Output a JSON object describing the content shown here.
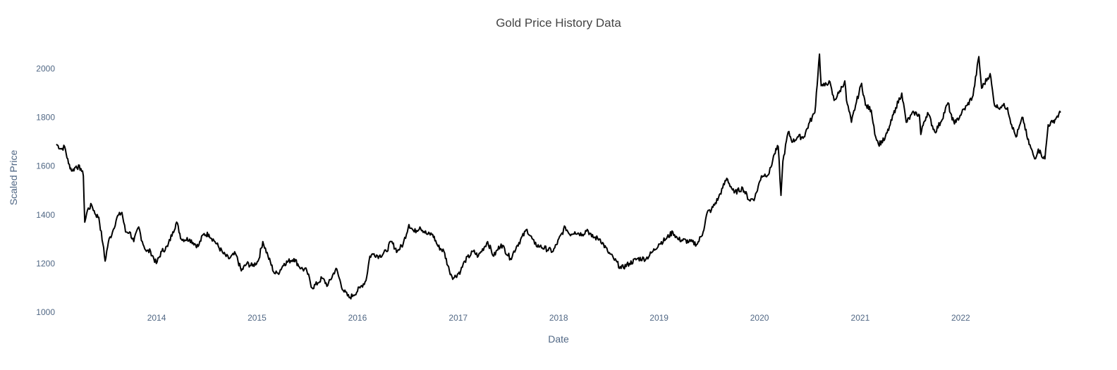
{
  "chart_data": {
    "type": "line",
    "title": "Gold Price History Data",
    "xlabel": "Date",
    "ylabel": "Scaled Price",
    "xlim": [
      "2013-01-02",
      "2022-12-30"
    ],
    "ylim": [
      1000,
      2100
    ],
    "x_ticks": [
      "2014",
      "2015",
      "2016",
      "2017",
      "2018",
      "2019",
      "2020",
      "2021",
      "2022"
    ],
    "y_ticks": [
      1000,
      1200,
      1400,
      1600,
      1800,
      2000
    ],
    "grid": false,
    "legend": "none",
    "colors": {
      "line": "#000000",
      "text": "#506784",
      "title": "#444444",
      "background": "#ffffff"
    },
    "series": [
      {
        "x": [
          "2013-01-02",
          "2013-01-20",
          "2013-02-01",
          "2013-02-15",
          "2013-03-01",
          "2013-03-15",
          "2013-04-01",
          "2013-04-10",
          "2013-04-15",
          "2013-04-25",
          "2013-05-10",
          "2013-05-25",
          "2013-06-05",
          "2013-06-20",
          "2013-06-28",
          "2013-07-10",
          "2013-07-25",
          "2013-08-10",
          "2013-08-28",
          "2013-09-10",
          "2013-09-25",
          "2013-10-10",
          "2013-10-28",
          "2013-11-10",
          "2013-11-25",
          "2013-12-10",
          "2013-12-31",
          "2014-01-20",
          "2014-02-10",
          "2014-03-01",
          "2014-03-15",
          "2014-04-01",
          "2014-05-01",
          "2014-06-01",
          "2014-06-20",
          "2014-07-10",
          "2014-08-01",
          "2014-09-01",
          "2014-09-20",
          "2014-10-15",
          "2014-11-05",
          "2014-11-25",
          "2014-12-15",
          "2015-01-05",
          "2015-01-22",
          "2015-02-10",
          "2015-03-05",
          "2015-03-18",
          "2015-04-10",
          "2015-05-15",
          "2015-06-10",
          "2015-07-01",
          "2015-07-20",
          "2015-08-10",
          "2015-08-25",
          "2015-09-15",
          "2015-10-15",
          "2015-11-10",
          "2015-12-02",
          "2015-12-17",
          "2016-01-10",
          "2016-02-01",
          "2016-02-15",
          "2016-03-01",
          "2016-03-20",
          "2016-04-15",
          "2016-05-02",
          "2016-05-25",
          "2016-06-15",
          "2016-07-06",
          "2016-07-25",
          "2016-08-15",
          "2016-09-10",
          "2016-09-30",
          "2016-10-20",
          "2016-11-10",
          "2016-11-30",
          "2016-12-15",
          "2017-01-10",
          "2017-01-25",
          "2017-02-25",
          "2017-03-15",
          "2017-04-18",
          "2017-05-10",
          "2017-06-06",
          "2017-07-10",
          "2017-08-01",
          "2017-09-08",
          "2017-10-06",
          "2017-10-25",
          "2017-12-12",
          "2018-01-25",
          "2018-02-10",
          "2018-03-01",
          "2018-03-28",
          "2018-04-15",
          "2018-05-01",
          "2018-06-01",
          "2018-06-28",
          "2018-07-20",
          "2018-08-16",
          "2018-09-15",
          "2018-10-15",
          "2018-11-15",
          "2018-12-10",
          "2018-12-31",
          "2019-01-25",
          "2019-02-20",
          "2019-03-10",
          "2019-04-20",
          "2019-05-20",
          "2019-06-10",
          "2019-06-25",
          "2019-07-10",
          "2019-08-05",
          "2019-08-20",
          "2019-09-04",
          "2019-10-01",
          "2019-11-01",
          "2019-11-25",
          "2019-12-15",
          "2020-01-08",
          "2020-02-05",
          "2020-02-24",
          "2020-03-09",
          "2020-03-19",
          "2020-03-26",
          "2020-04-14",
          "2020-05-01",
          "2020-05-18",
          "2020-06-10",
          "2020-07-01",
          "2020-07-20",
          "2020-08-06",
          "2020-08-12",
          "2020-08-25",
          "2020-09-10",
          "2020-09-28",
          "2020-10-15",
          "2020-11-06",
          "2020-11-12",
          "2020-11-30",
          "2020-12-15",
          "2021-01-06",
          "2021-01-20",
          "2021-02-10",
          "2021-02-26",
          "2021-03-08",
          "2021-03-31",
          "2021-04-20",
          "2021-05-10",
          "2021-06-01",
          "2021-06-17",
          "2021-07-15",
          "2021-08-04",
          "2021-08-09",
          "2021-08-20",
          "2021-09-03",
          "2021-09-29",
          "2021-10-20",
          "2021-11-16",
          "2021-12-01",
          "2021-12-15",
          "2022-01-05",
          "2022-01-25",
          "2022-02-15",
          "2022-03-08",
          "2022-03-18",
          "2022-04-18",
          "2022-05-02",
          "2022-05-16",
          "2022-06-01",
          "2022-06-20",
          "2022-07-05",
          "2022-07-21",
          "2022-08-15",
          "2022-09-01",
          "2022-09-27",
          "2022-10-10",
          "2022-10-20",
          "2022-11-03",
          "2022-11-15",
          "2022-12-01",
          "2022-12-15",
          "2022-12-30"
        ],
        "y": [
          1690,
          1670,
          1680,
          1610,
          1580,
          1600,
          1590,
          1560,
          1370,
          1420,
          1440,
          1400,
          1390,
          1280,
          1210,
          1290,
          1330,
          1390,
          1410,
          1330,
          1330,
          1290,
          1350,
          1290,
          1250,
          1250,
          1200,
          1250,
          1270,
          1330,
          1370,
          1300,
          1300,
          1270,
          1320,
          1320,
          1290,
          1240,
          1220,
          1240,
          1170,
          1200,
          1190,
          1210,
          1290,
          1230,
          1160,
          1160,
          1200,
          1220,
          1180,
          1170,
          1100,
          1120,
          1140,
          1110,
          1180,
          1090,
          1060,
          1070,
          1100,
          1130,
          1230,
          1240,
          1230,
          1250,
          1290,
          1250,
          1280,
          1360,
          1330,
          1350,
          1320,
          1320,
          1270,
          1250,
          1170,
          1140,
          1170,
          1210,
          1250,
          1230,
          1290,
          1230,
          1280,
          1220,
          1270,
          1340,
          1280,
          1270,
          1250,
          1350,
          1320,
          1330,
          1320,
          1340,
          1310,
          1300,
          1250,
          1220,
          1180,
          1200,
          1220,
          1220,
          1250,
          1280,
          1300,
          1330,
          1300,
          1290,
          1280,
          1330,
          1410,
          1420,
          1470,
          1510,
          1550,
          1490,
          1510,
          1460,
          1470,
          1560,
          1570,
          1650,
          1680,
          1480,
          1620,
          1740,
          1700,
          1720,
          1720,
          1780,
          1820,
          2060,
          1930,
          1930,
          1950,
          1870,
          1900,
          1950,
          1870,
          1780,
          1850,
          1940,
          1850,
          1830,
          1720,
          1690,
          1710,
          1770,
          1840,
          1900,
          1780,
          1820,
          1810,
          1730,
          1780,
          1820,
          1740,
          1780,
          1860,
          1790,
          1780,
          1820,
          1850,
          1890,
          2050,
          1920,
          1980,
          1860,
          1840,
          1850,
          1840,
          1770,
          1720,
          1800,
          1710,
          1630,
          1670,
          1650,
          1630,
          1770,
          1780,
          1800,
          1820
        ]
      }
    ]
  }
}
